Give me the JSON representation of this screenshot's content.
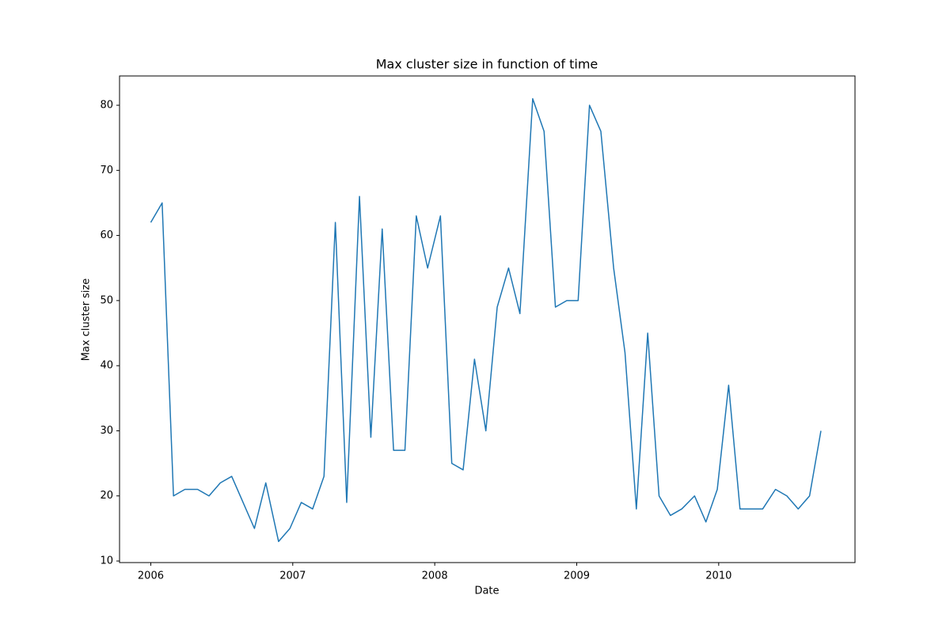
{
  "chart_data": {
    "type": "line",
    "title": "Max cluster size in function of time",
    "x_label": "Date",
    "y_label": "Max cluster size",
    "x": [
      2006.0,
      2006.08,
      2006.16,
      2006.24,
      2006.33,
      2006.41,
      2006.49,
      2006.57,
      2006.65,
      2006.73,
      2006.81,
      2006.9,
      2006.98,
      2007.06,
      2007.14,
      2007.22,
      2007.3,
      2007.38,
      2007.47,
      2007.55,
      2007.63,
      2007.71,
      2007.79,
      2007.87,
      2007.95,
      2008.04,
      2008.12,
      2008.2,
      2008.28,
      2008.36,
      2008.44,
      2008.52,
      2008.6,
      2008.69,
      2008.77,
      2008.85,
      2008.93,
      2009.01,
      2009.09,
      2009.17,
      2009.26,
      2009.34,
      2009.42,
      2009.5,
      2009.58,
      2009.66,
      2009.74,
      2009.83,
      2009.91,
      2009.99,
      2010.07,
      2010.15,
      2010.23,
      2010.31,
      2010.4,
      2010.48,
      2010.56,
      2010.64,
      2010.72
    ],
    "series": [
      {
        "color": "#1f77b4",
        "values": [
          62,
          65,
          20,
          21,
          21,
          20,
          22,
          23,
          19,
          15,
          22,
          13,
          15,
          19,
          18,
          23,
          62,
          19,
          66,
          29,
          61,
          27,
          27,
          63,
          55,
          63,
          25,
          24,
          41,
          30,
          49,
          55,
          48,
          81,
          76,
          49,
          50,
          50,
          80,
          76,
          55,
          42,
          18,
          45,
          20,
          17,
          18,
          20,
          16,
          21,
          37,
          18,
          18,
          18,
          21,
          20,
          18,
          20,
          30
        ]
      }
    ],
    "xlim": [
      2005.78,
      2010.96
    ],
    "xticks": [
      2006,
      2007,
      2008,
      2009,
      2010
    ],
    "ylim": [
      9.76,
      84.5
    ],
    "yticks": [
      10,
      20,
      30,
      40,
      50,
      60,
      70,
      80
    ]
  }
}
